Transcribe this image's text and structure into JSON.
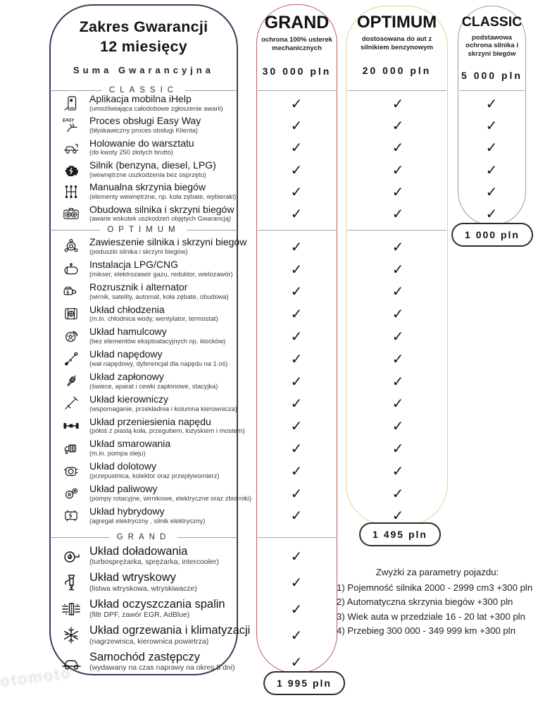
{
  "left_card": {
    "title_line1": "Zakres Gwarancji",
    "title_line2": "12 miesięcy",
    "sum_label": "Suma Gwarancyjna"
  },
  "plans": [
    {
      "name": "GRAND",
      "description": "ochrona 100% usterek mechanicznych",
      "sum": "30 000 pln",
      "bottom_price": "1 995 pln",
      "border_color": "#b66060",
      "checked_rows": 24
    },
    {
      "name": "OPTIMUM",
      "description": "dostosowana do aut z silnikiem benzynowym",
      "sum": "20 000 pln",
      "bottom_price": "1 495 pln",
      "border_color": "#e6d184",
      "checked_rows": 19
    },
    {
      "name": "CLASSIC",
      "description": "podstawowa ochrona silnika i skrzyni biegów",
      "sum": "5 000 pln",
      "bottom_price": "1 000 pln",
      "border_color": "#8aa88a",
      "checked_rows": 6
    }
  ],
  "check_glyph": "✓",
  "sections": [
    {
      "label": "CLASSIC",
      "items": [
        {
          "icon": "mobile-app-icon",
          "title": "Aplikacja mobilna iHelp",
          "subtitle": "(umożliwiająca całodobowe zgłoszenie awarii)"
        },
        {
          "icon": "easy-way-hand-icon",
          "title": "Proces obsługi Easy Way",
          "subtitle": "(błyskawiczny proces obsługi Klienta)"
        },
        {
          "icon": "tow-truck-icon",
          "title": "Holowanie do warsztatu",
          "subtitle": "(do kwoty 250 złotych brutto)"
        },
        {
          "icon": "engine-icon",
          "title": "Silnik (benzyna, diesel, LPG)",
          "subtitle": "(wewnętrzne uszkodzenia bez osprzętu)"
        },
        {
          "icon": "gear-shifter-icon",
          "title": "Manualna skrzynia biegów",
          "subtitle": "(elementy wewnętrzne, np. koła zębate, wybieraki)"
        },
        {
          "icon": "gear-housing-icon",
          "title": "Obudowa silnika i skrzyni biegów",
          "subtitle": "(awarie wskutek uszkodzeń objętych Gwarancją)"
        }
      ]
    },
    {
      "label": "OPTIMUM",
      "items": [
        {
          "icon": "engine-mount-icon",
          "title": "Zawieszenie silnika i skrzyni biegów",
          "subtitle": "(poduszki silnika i skrzyni biegów)"
        },
        {
          "icon": "lpg-tank-icon",
          "title": "Instalacja LPG/CNG",
          "subtitle": "(mikser, elektrozawór gazu, reduktor, wielozawór)"
        },
        {
          "icon": "starter-icon",
          "title": "Rozrusznik i alternator",
          "subtitle": "(wirnik, satelity, automat, koła zębate, obudowa)"
        },
        {
          "icon": "radiator-icon",
          "title": "Układ chłodzenia",
          "subtitle": "(m.in. chłodnica wody, wentylator, termostat)"
        },
        {
          "icon": "brake-disc-icon",
          "title": "Układ hamulcowy",
          "subtitle": "(bez elementów eksploatacyjnych np. klocków)"
        },
        {
          "icon": "driveshaft-icon",
          "title": "Układ napędowy",
          "subtitle": "(wał napędowy, dyferencjał dla napędu na 1 oś)"
        },
        {
          "icon": "spark-plug-icon",
          "title": "Układ zapłonowy",
          "subtitle": "(świece, aparat i cewki zapłonowe, stacyjka)"
        },
        {
          "icon": "steering-icon",
          "title": "Układ kierowniczy",
          "subtitle": "(wspomaganie, przekładnia i kolumna kierownicza)"
        },
        {
          "icon": "axle-icon",
          "title": "Układ przeniesienia napędu",
          "subtitle": "(półoś z piastą koła, przegubem, łożyskiem i mostem)"
        },
        {
          "icon": "oil-pump-icon",
          "title": "Układ smarowania",
          "subtitle": "(m.in. pompa oleju)"
        },
        {
          "icon": "intake-icon",
          "title": "Układ dolotowy",
          "subtitle": "(przepustnica, kolektor oraz przepływomierz)"
        },
        {
          "icon": "fuel-pump-icon",
          "title": "Układ paliwowy",
          "subtitle": "(pompy rotacyjne, wirnikowe, elektryczne oraz zbiorniki)"
        },
        {
          "icon": "generator-icon",
          "title": "Układ hybrydowy",
          "subtitle": "(agregat elektryczny , silnik elektryczny)"
        }
      ]
    },
    {
      "label": "GRAND",
      "items": [
        {
          "icon": "turbo-icon",
          "title": "Układ doładowania",
          "subtitle": "(turbosprężarka, sprężarka, intercooler)"
        },
        {
          "icon": "injector-icon",
          "title": "Układ wtryskowy",
          "subtitle": "(listwa wtryskowa, wtryskiwacze)"
        },
        {
          "icon": "dpf-filter-icon",
          "title": "Układ oczyszczania spalin",
          "subtitle": "(filtr DPF, zawór EGR, AdBlue)"
        },
        {
          "icon": "snowflake-icon",
          "title": "Układ ogrzewania i klimatyzacji",
          "subtitle": "(nagrzewnica, kierownica powietrza)"
        },
        {
          "icon": "car-icon",
          "title": "Samochód zastępczy",
          "subtitle": "(wydawany na czas naprawy na okres 5 dni)"
        }
      ]
    }
  ],
  "notes": {
    "title": "Zwyżki za parametry pojazdu:",
    "lines": [
      "1) Pojemność silnika 2000 - 2999 cm3 +300 pln",
      "2) Automatyczna skrzynia biegów +300 pln",
      "3) Wiek auta w przedziale 16 - 20 lat +300 pln",
      "4) Przebieg 300 000 - 349 999 km +300 pln"
    ]
  },
  "watermark": "otomoto"
}
